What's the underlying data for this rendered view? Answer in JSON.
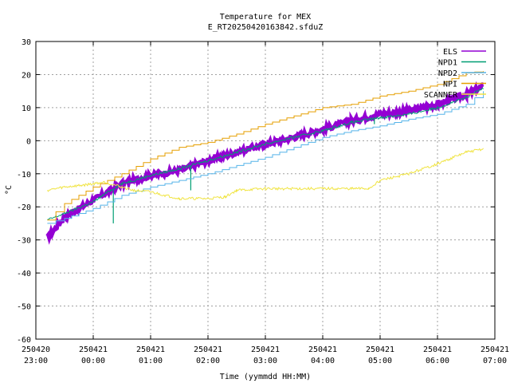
{
  "chart_data": {
    "type": "line",
    "title": "Temperature for MEX",
    "subtitle": "E_RT20250420163842.sfduZ",
    "xlabel": "Time (yymmdd HH:MM)",
    "ylabel": "°C",
    "ylim": [
      -60,
      30
    ],
    "yticks": [
      -60,
      -50,
      -40,
      -30,
      -20,
      -10,
      0,
      10,
      20,
      30
    ],
    "xlim_hours": [
      0,
      8
    ],
    "xticks": [
      {
        "date": "250420",
        "time": "23:00"
      },
      {
        "date": "250421",
        "time": "00:00"
      },
      {
        "date": "250421",
        "time": "01:00"
      },
      {
        "date": "250421",
        "time": "02:00"
      },
      {
        "date": "250421",
        "time": "03:00"
      },
      {
        "date": "250421",
        "time": "04:00"
      },
      {
        "date": "250421",
        "time": "05:00"
      },
      {
        "date": "250421",
        "time": "06:00"
      },
      {
        "date": "250421",
        "time": "07:00"
      }
    ],
    "grid": true,
    "legend_position": "top-right",
    "series": [
      {
        "name": "ELS",
        "color": "#9400d3",
        "style": "thick-noisy",
        "points": [
          [
            0.2,
            -29.5
          ],
          [
            0.5,
            -23
          ],
          [
            1.0,
            -18
          ],
          [
            1.5,
            -13
          ],
          [
            2.0,
            -10.5
          ],
          [
            2.5,
            -9
          ],
          [
            3.0,
            -6
          ],
          [
            3.5,
            -3.5
          ],
          [
            4.0,
            -1
          ],
          [
            4.5,
            1
          ],
          [
            5.0,
            3.5
          ],
          [
            5.5,
            6
          ],
          [
            6.0,
            8
          ],
          [
            6.5,
            9
          ],
          [
            7.0,
            11
          ],
          [
            7.5,
            14
          ],
          [
            7.8,
            16.5
          ]
        ]
      },
      {
        "name": "NPD1",
        "color": "#009e73",
        "style": "noisy",
        "points": [
          [
            0.2,
            -24
          ],
          [
            0.5,
            -22
          ],
          [
            1.0,
            -18.5
          ],
          [
            1.3,
            -15
          ],
          [
            1.5,
            -13
          ],
          [
            2.0,
            -10.5
          ],
          [
            2.5,
            -8.5
          ],
          [
            3.0,
            -6
          ],
          [
            3.5,
            -3.5
          ],
          [
            4.0,
            -1
          ],
          [
            4.5,
            1
          ],
          [
            5.0,
            3
          ],
          [
            5.5,
            5.5
          ],
          [
            6.0,
            7
          ],
          [
            6.5,
            8
          ],
          [
            7.0,
            10
          ],
          [
            7.5,
            13
          ],
          [
            7.8,
            16
          ]
        ],
        "spikes": [
          [
            1.35,
            -25
          ],
          [
            2.7,
            -15
          ],
          [
            5.9,
            5
          ]
        ]
      },
      {
        "name": "NPD2",
        "color": "#56b4e9",
        "style": "step",
        "points": [
          [
            0.2,
            -25
          ],
          [
            0.5,
            -23.5
          ],
          [
            1.0,
            -20.5
          ],
          [
            1.5,
            -16.5
          ],
          [
            2.0,
            -14
          ],
          [
            2.5,
            -12
          ],
          [
            3.0,
            -10
          ],
          [
            3.5,
            -7.5
          ],
          [
            4.0,
            -5
          ],
          [
            4.5,
            -2
          ],
          [
            5.0,
            1
          ],
          [
            5.5,
            3
          ],
          [
            6.0,
            4.5
          ],
          [
            6.5,
            6.5
          ],
          [
            7.0,
            8
          ],
          [
            7.5,
            11
          ],
          [
            7.8,
            15
          ]
        ]
      },
      {
        "name": "NPI",
        "color": "#e69f00",
        "style": "step",
        "points": [
          [
            0.2,
            -24
          ],
          [
            0.5,
            -19
          ],
          [
            1.0,
            -14
          ],
          [
            1.5,
            -10
          ],
          [
            2.0,
            -5.5
          ],
          [
            2.5,
            -2
          ],
          [
            3.0,
            -0.5
          ],
          [
            3.5,
            2
          ],
          [
            4.0,
            5
          ],
          [
            4.5,
            7.5
          ],
          [
            5.0,
            10
          ],
          [
            5.5,
            11
          ],
          [
            6.0,
            13.5
          ],
          [
            6.5,
            15
          ],
          [
            7.0,
            17
          ],
          [
            7.5,
            20.5
          ],
          [
            7.8,
            21
          ]
        ]
      },
      {
        "name": "SCANNER",
        "color": "#f0e442",
        "style": "noisy",
        "points": [
          [
            0.2,
            -15
          ],
          [
            0.5,
            -14
          ],
          [
            0.8,
            -13.5
          ],
          [
            1.0,
            -13
          ],
          [
            1.2,
            -12.5
          ],
          [
            1.5,
            -14
          ],
          [
            1.7,
            -15
          ],
          [
            2.0,
            -15.5
          ],
          [
            2.5,
            -17.5
          ],
          [
            3.0,
            -17.5
          ],
          [
            3.3,
            -17
          ],
          [
            3.5,
            -15
          ],
          [
            4.0,
            -14.5
          ],
          [
            4.5,
            -14.5
          ],
          [
            5.0,
            -14.5
          ],
          [
            5.5,
            -14.5
          ],
          [
            5.8,
            -14.5
          ],
          [
            6.0,
            -12
          ],
          [
            6.5,
            -10
          ],
          [
            7.0,
            -7
          ],
          [
            7.5,
            -3.5
          ],
          [
            7.8,
            -2.5
          ]
        ]
      }
    ]
  }
}
